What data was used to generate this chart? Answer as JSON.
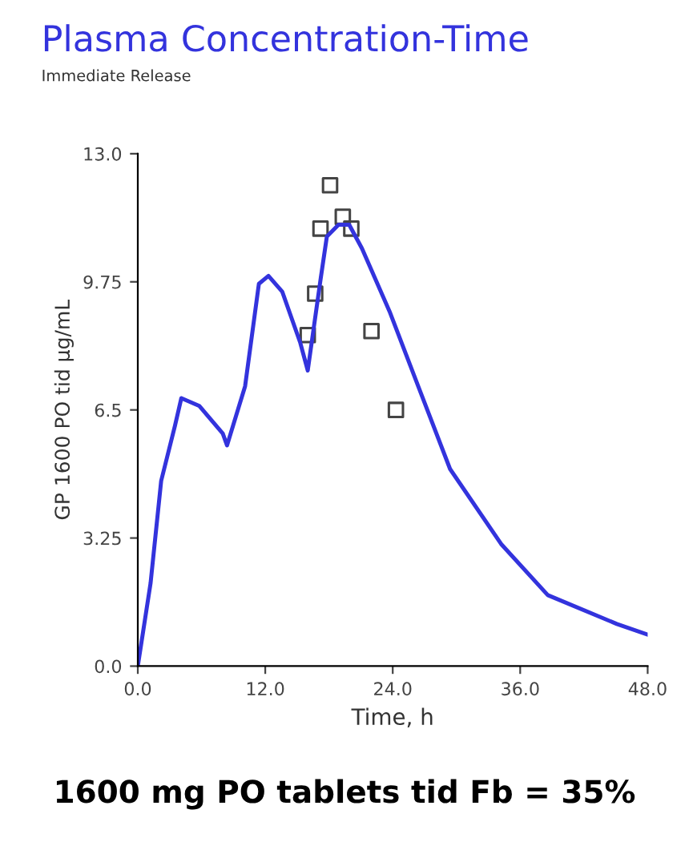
{
  "chart_data": {
    "type": "line",
    "title": "Plasma Concentration-Time",
    "subtitle": "Immediate Release",
    "xlabel": "Time, h",
    "ylabel": "GP 1600 PO tid µg/mL",
    "annotations": [
      "1600 mg PO tablets tid Fb = 35%"
    ],
    "xlim": [
      0,
      48
    ],
    "ylim": [
      0,
      13
    ],
    "xticks": [
      {
        "value": 0,
        "label": "0.0"
      },
      {
        "value": 12,
        "label": "12.0"
      },
      {
        "value": 24,
        "label": "24.0"
      },
      {
        "value": 36,
        "label": "36.0"
      },
      {
        "value": 48,
        "label": "48.0"
      }
    ],
    "yticks": [
      {
        "value": 0,
        "label": "0.0"
      },
      3.25,
      6.5,
      9.75,
      {
        "value": 13,
        "label": "13.0"
      }
    ],
    "grid": false,
    "legend": false,
    "series": [
      {
        "color": "#3333dd",
        "marker": "none",
        "line_style": "solid",
        "x": [
          0,
          1.2,
          2.2,
          3.5,
          4.1,
          5.8,
          8.0,
          8.4,
          10.1,
          11.4,
          12.3,
          13.6,
          15.3,
          16.0,
          17.2,
          17.8,
          18.9,
          19.9,
          21.1,
          23.7,
          26.4,
          29.4,
          34.2,
          38.6,
          45.1,
          48
        ],
        "values": [
          0,
          2.1,
          4.7,
          6.1,
          6.8,
          6.6,
          5.9,
          5.6,
          7.1,
          9.7,
          9.9,
          9.5,
          8.2,
          7.5,
          9.8,
          10.9,
          11.2,
          11.2,
          10.6,
          9.0,
          7.1,
          5.0,
          3.1,
          1.8,
          1.07,
          0.8
        ]
      },
      {
        "type": "scatter",
        "color": "#444444",
        "marker": "square",
        "x": [
          16.0,
          16.7,
          17.2,
          18.1,
          19.3,
          20.1,
          22.0,
          24.3
        ],
        "values": [
          8.4,
          9.45,
          11.1,
          12.2,
          11.4,
          11.1,
          8.5,
          6.5
        ]
      }
    ]
  }
}
